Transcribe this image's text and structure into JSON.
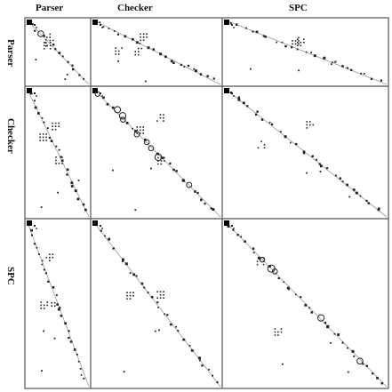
{
  "figure": {
    "column_labels": [
      "Parser",
      "Checker",
      "SPC"
    ],
    "row_labels": [
      "Parser",
      "Checker",
      "SPC"
    ],
    "diagonal_line_color": "#999999",
    "mark_color": "#222222",
    "border_color": "#555555"
  }
}
